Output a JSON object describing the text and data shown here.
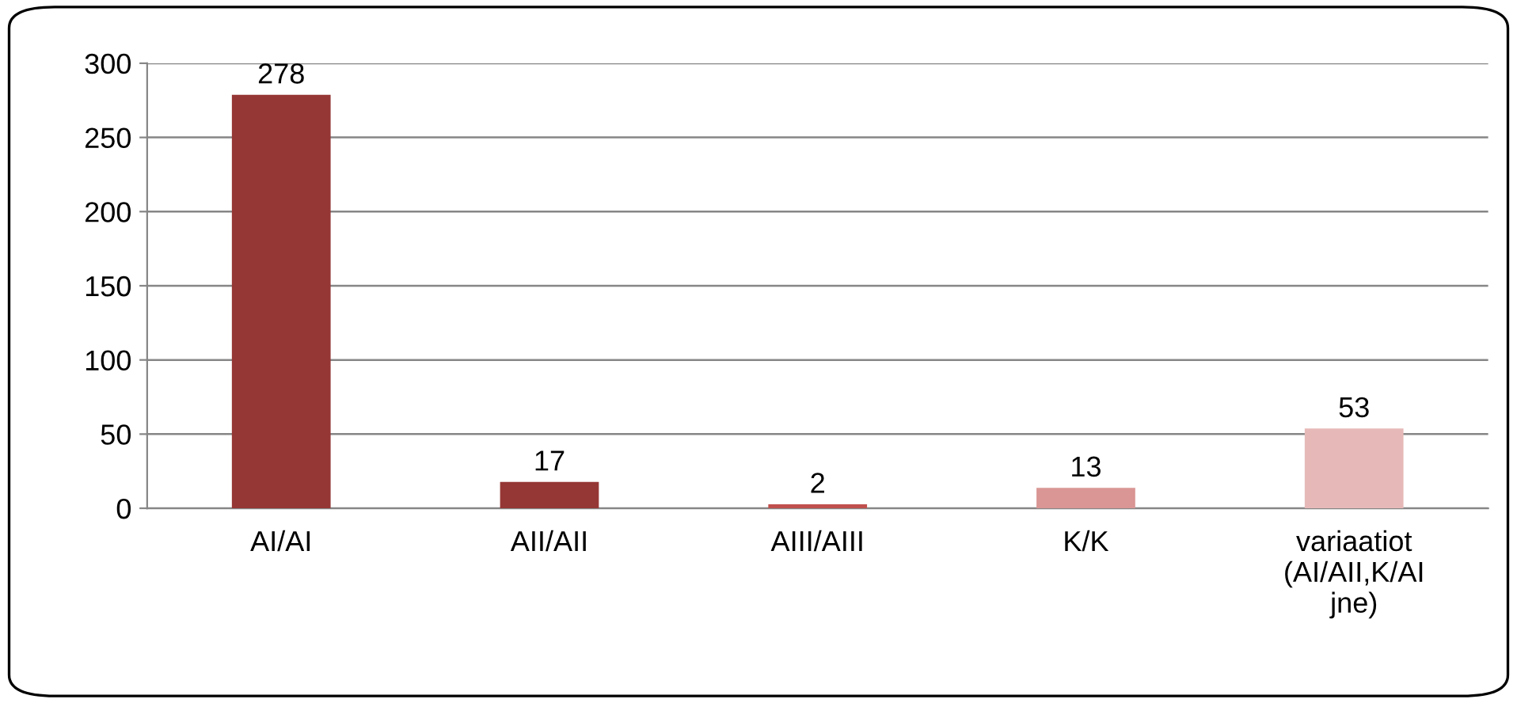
{
  "chart_data": {
    "type": "bar",
    "categories": [
      "AI/AI",
      "AII/AII",
      "AIII/AIII",
      "K/K",
      "variaatiot\n(AI/AII,K/AI\njne)"
    ],
    "values": [
      278,
      17,
      2,
      13,
      53
    ],
    "colors": [
      "#953735",
      "#953735",
      "#c0504d",
      "#d99694",
      "#e6b9b8"
    ],
    "ylim": [
      0,
      300
    ],
    "yticks": [
      0,
      50,
      100,
      150,
      200,
      250,
      300
    ],
    "grid": "y",
    "data_labels": true
  }
}
